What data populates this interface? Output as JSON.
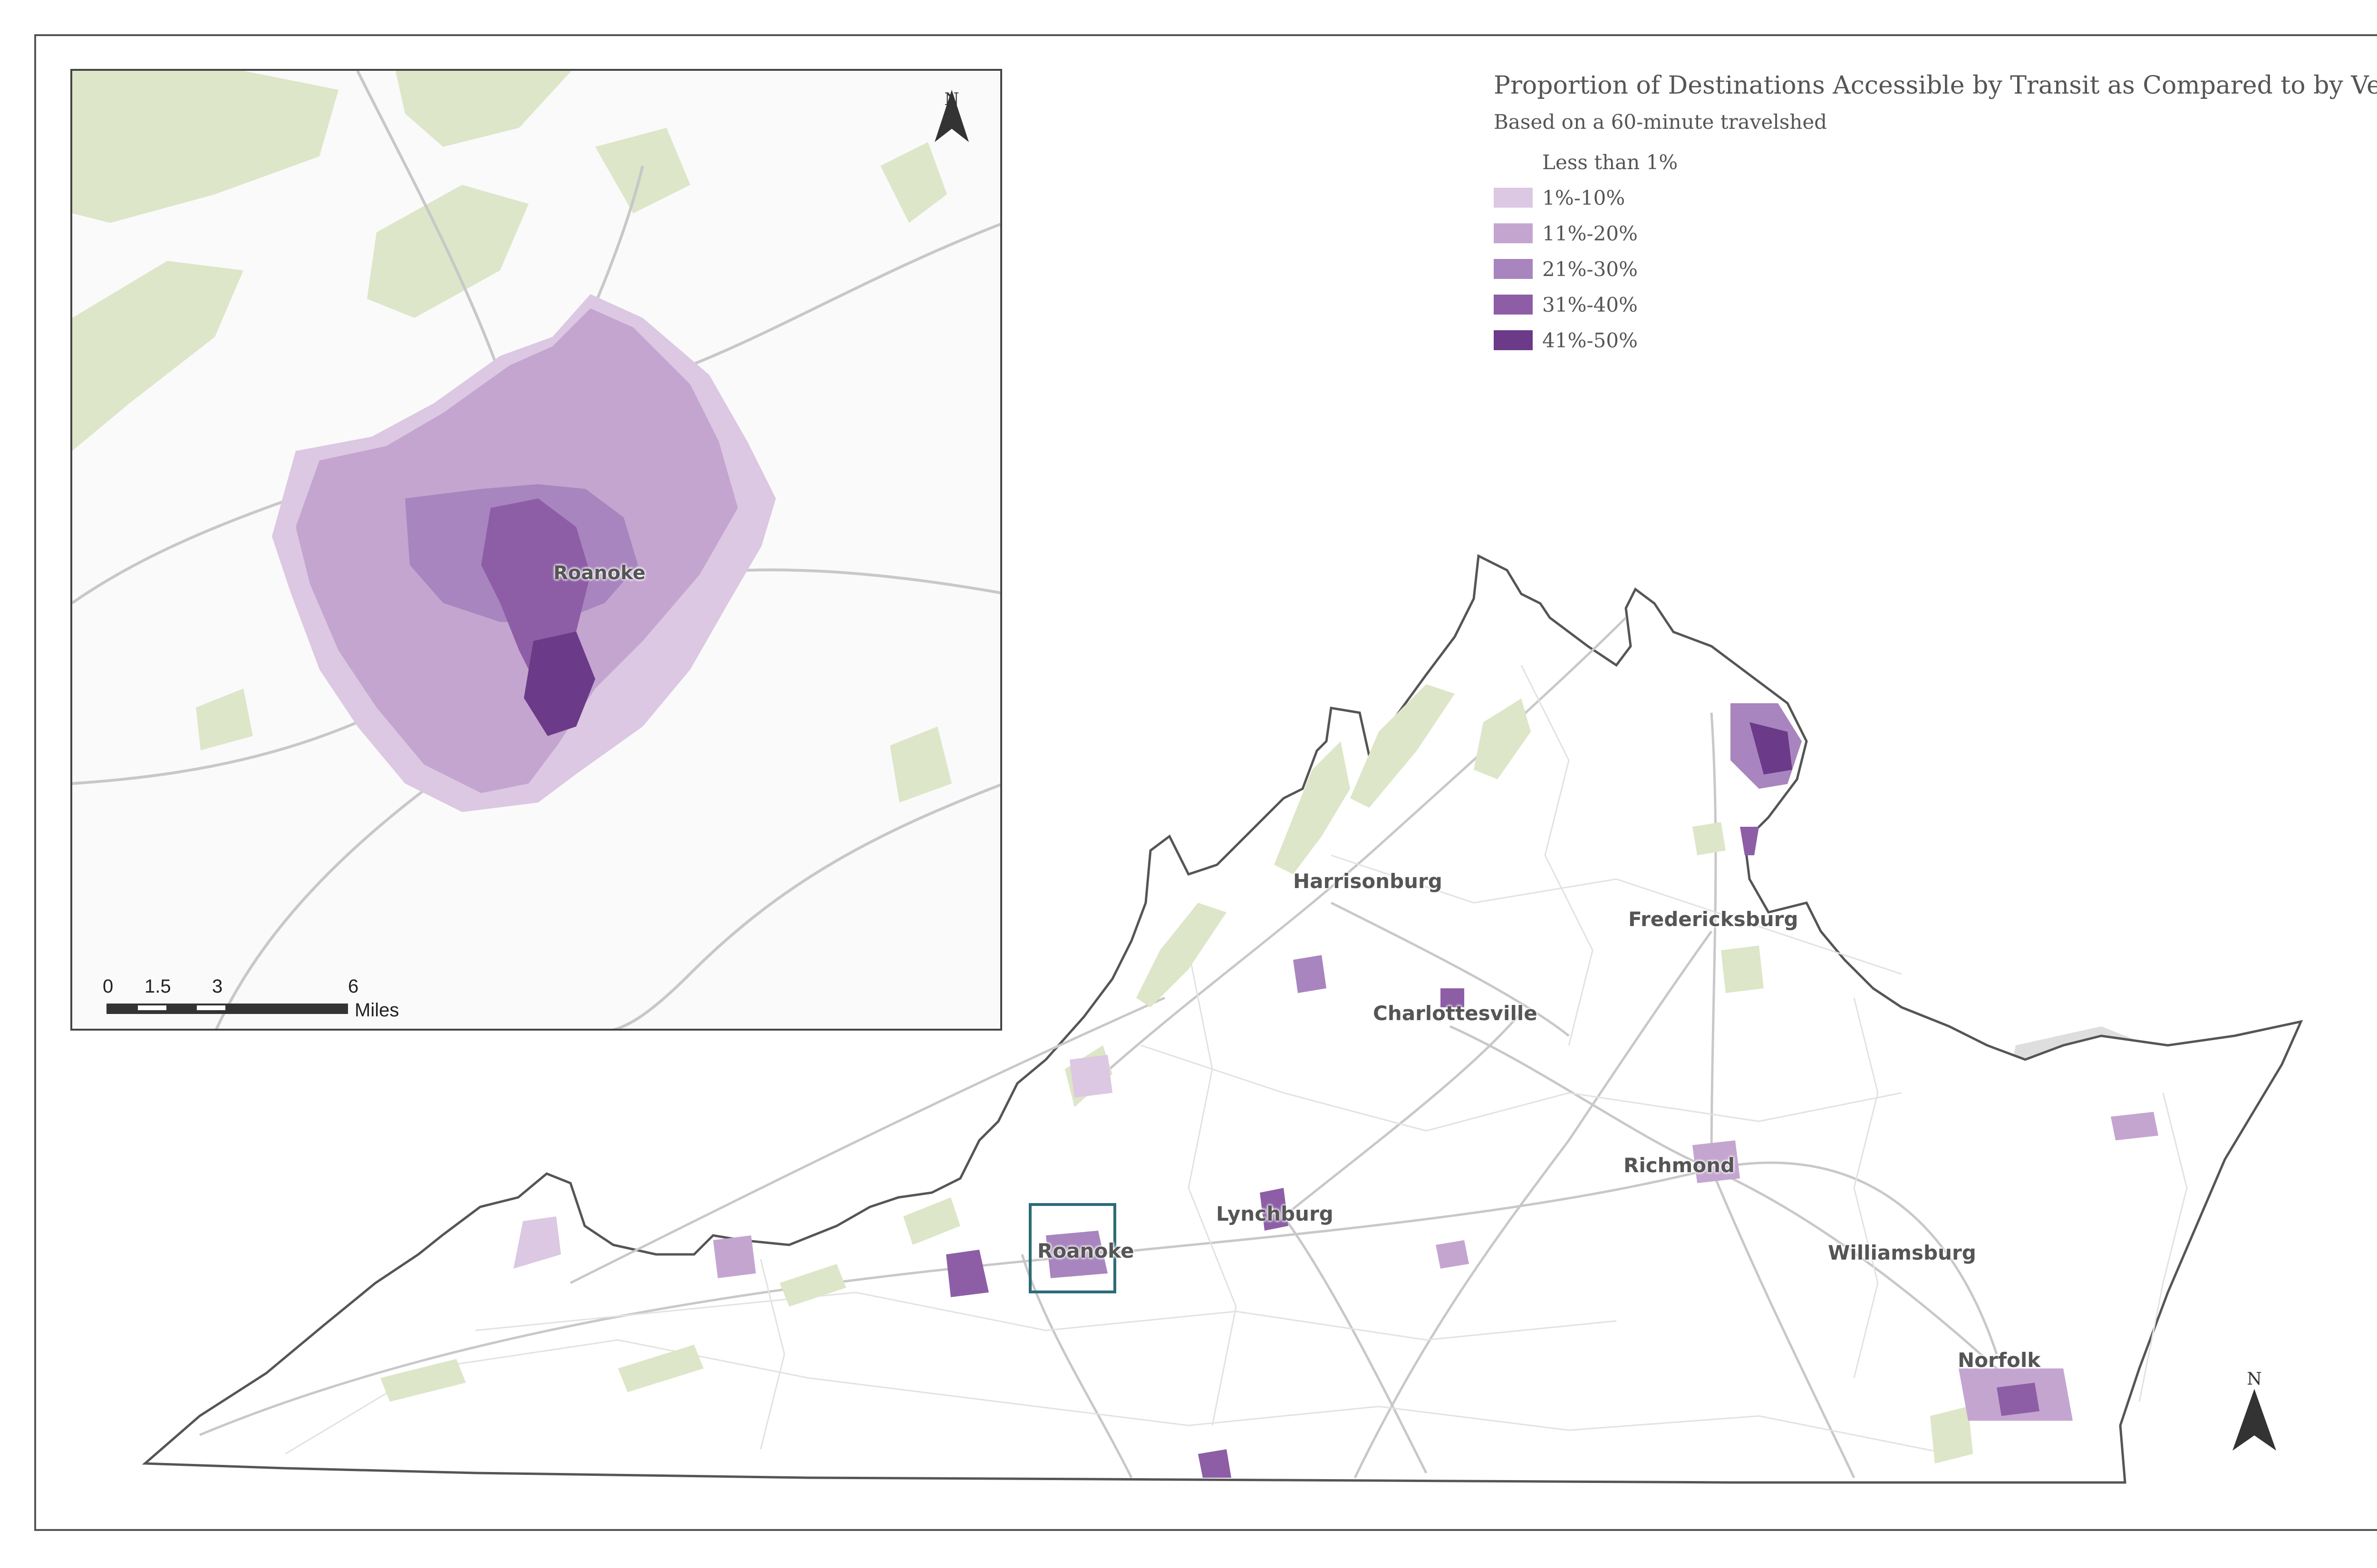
{
  "map": {
    "title": "Proportion of Destinations Accessible by Transit as Compared to by Vehicle",
    "subtitle": "Based on a 60-minute travelshed",
    "legend": [
      {
        "label": "Less than 1%",
        "color": "#ffffff"
      },
      {
        "label": "1%-10%",
        "color": "#dcc8e2"
      },
      {
        "label": "11%-20%",
        "color": "#c4a5d0"
      },
      {
        "label": "21%-30%",
        "color": "#a885be"
      },
      {
        "label": "31%-40%",
        "color": "#8d5ea6"
      },
      {
        "label": "41%-50%",
        "color": "#6b3a88"
      }
    ],
    "colors": {
      "park_green": "#dde6c8",
      "water_gray": "#dedede",
      "road_gray": "#c8c8c8",
      "boundary": "#555555",
      "locator_box": "#2d6b78"
    },
    "cities": [
      {
        "name": "Harrisonburg"
      },
      {
        "name": "Fredericksburg"
      },
      {
        "name": "Charlottesville"
      },
      {
        "name": "Richmond"
      },
      {
        "name": "Lynchburg"
      },
      {
        "name": "Roanoke"
      },
      {
        "name": "Williamsburg"
      },
      {
        "name": "Norfolk"
      }
    ],
    "inset": {
      "city_label": "Roanoke",
      "scale_bar": {
        "ticks": [
          "0",
          "1.5",
          "3",
          "6"
        ],
        "unit": "Miles"
      }
    },
    "north_arrow": {
      "letter": "N",
      "icon": "north-arrow-icon"
    }
  }
}
